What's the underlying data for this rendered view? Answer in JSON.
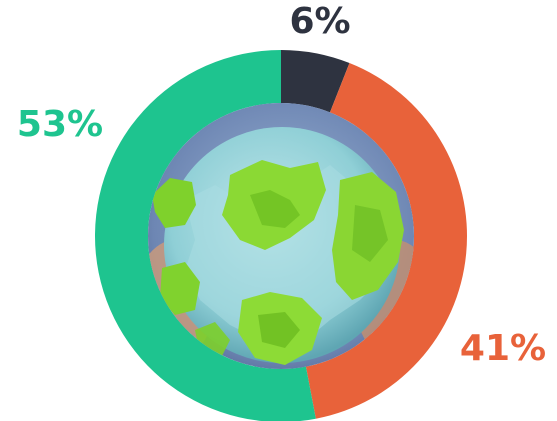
{
  "chart_data": {
    "type": "pie",
    "title": "",
    "donut": true,
    "center_image": "crumpled-paper-globe-photo",
    "slices": [
      {
        "value": 6,
        "label": "6%",
        "color": "#2e3340"
      },
      {
        "value": 41,
        "label": "41%",
        "color": "#e8623a"
      },
      {
        "value": 53,
        "label": "53%",
        "color": "#1ec48f"
      }
    ]
  }
}
